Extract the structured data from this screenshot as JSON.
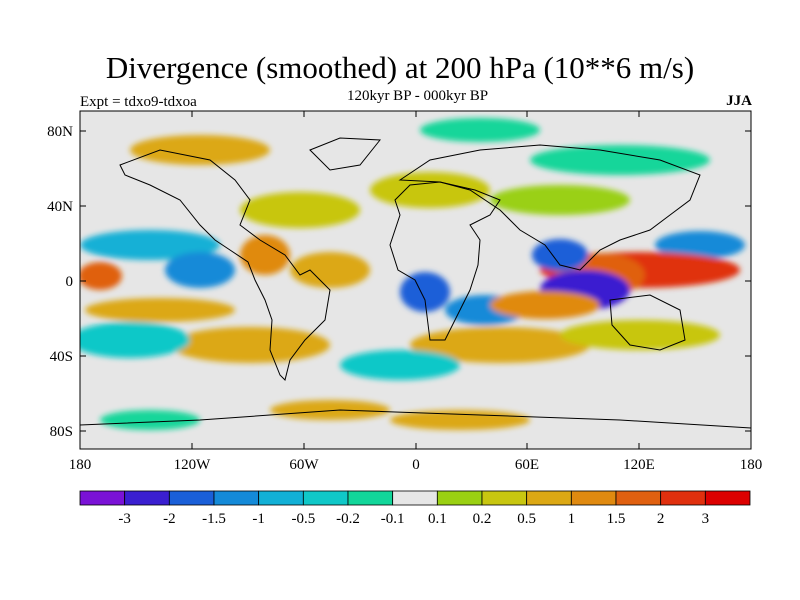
{
  "header": {
    "title": "Divergence (smoothed) at 200 hPa (10**6 m/s)",
    "subtitle": "120kyr BP - 000kyr BP",
    "experiment": "Expt = tdxo9-tdxoa",
    "season": "JJA"
  },
  "axes": {
    "lat_labels": [
      "80N",
      "40N",
      "0",
      "40S",
      "80S"
    ],
    "lon_labels": [
      "180",
      "120W",
      "60W",
      "0",
      "60E",
      "120E",
      "180"
    ]
  },
  "colorbar": {
    "labels": [
      "-3",
      "-2",
      "-1.5",
      "-1",
      "-0.5",
      "-0.2",
      "-0.1",
      "0.1",
      "0.2",
      "0.5",
      "1",
      "1.5",
      "2",
      "3"
    ],
    "colors": [
      "#7a12d6",
      "#3a1fd0",
      "#1a5fd8",
      "#148ad8",
      "#12b0d6",
      "#10c8c8",
      "#12d69a",
      "#e6e6e6",
      "#9ad012",
      "#c8c610",
      "#dca814",
      "#e08a10",
      "#e06010",
      "#e0300e",
      "#dc0000"
    ]
  },
  "map": {
    "background_color": "#e6e6e6"
  }
}
